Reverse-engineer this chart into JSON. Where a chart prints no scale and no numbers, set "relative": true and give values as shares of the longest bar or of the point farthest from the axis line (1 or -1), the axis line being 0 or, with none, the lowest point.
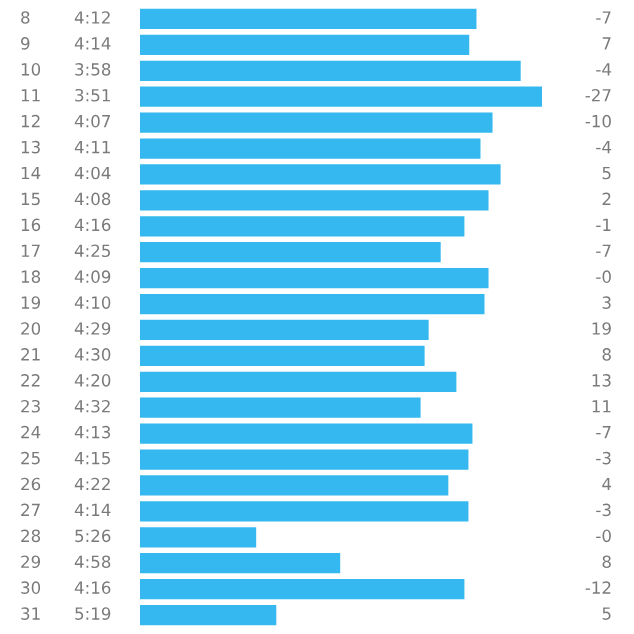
{
  "chart_data": {
    "type": "bar",
    "orientation": "horizontal",
    "relative": true,
    "color": "#35b8ef",
    "categories": [
      "8",
      "9",
      "10",
      "11",
      "12",
      "13",
      "14",
      "15",
      "16",
      "17",
      "18",
      "19",
      "20",
      "21",
      "22",
      "23",
      "24",
      "25",
      "26",
      "27",
      "28",
      "29",
      "30",
      "31"
    ],
    "values": [
      0.837,
      0.819,
      0.947,
      1,
      0.877,
      0.847,
      0.897,
      0.867,
      0.807,
      0.748,
      0.867,
      0.857,
      0.718,
      0.708,
      0.787,
      0.698,
      0.827,
      0.817,
      0.767,
      0.817,
      0.289,
      0.498,
      0.807,
      0.339
    ],
    "annotations": [
      "4:12",
      "4:14",
      "3:58",
      "3:51",
      "4:07",
      "4:11",
      "4:04",
      "4:08",
      "4:16",
      "4:25",
      "4:09",
      "4:10",
      "4:29",
      "4:30",
      "4:20",
      "4:32",
      "4:13",
      "4:15",
      "4:22",
      "4:14",
      "5:26",
      "4:58",
      "4:16",
      "5:19",
      "-7",
      "7",
      "-4",
      "-27",
      "-10",
      "-4",
      "5",
      "2",
      "-1",
      "-7",
      "-0",
      "3",
      "19",
      "8",
      "13",
      "11",
      "-7",
      "-3",
      "4",
      "-3",
      "-0",
      "8",
      "-12",
      "5"
    ]
  }
}
